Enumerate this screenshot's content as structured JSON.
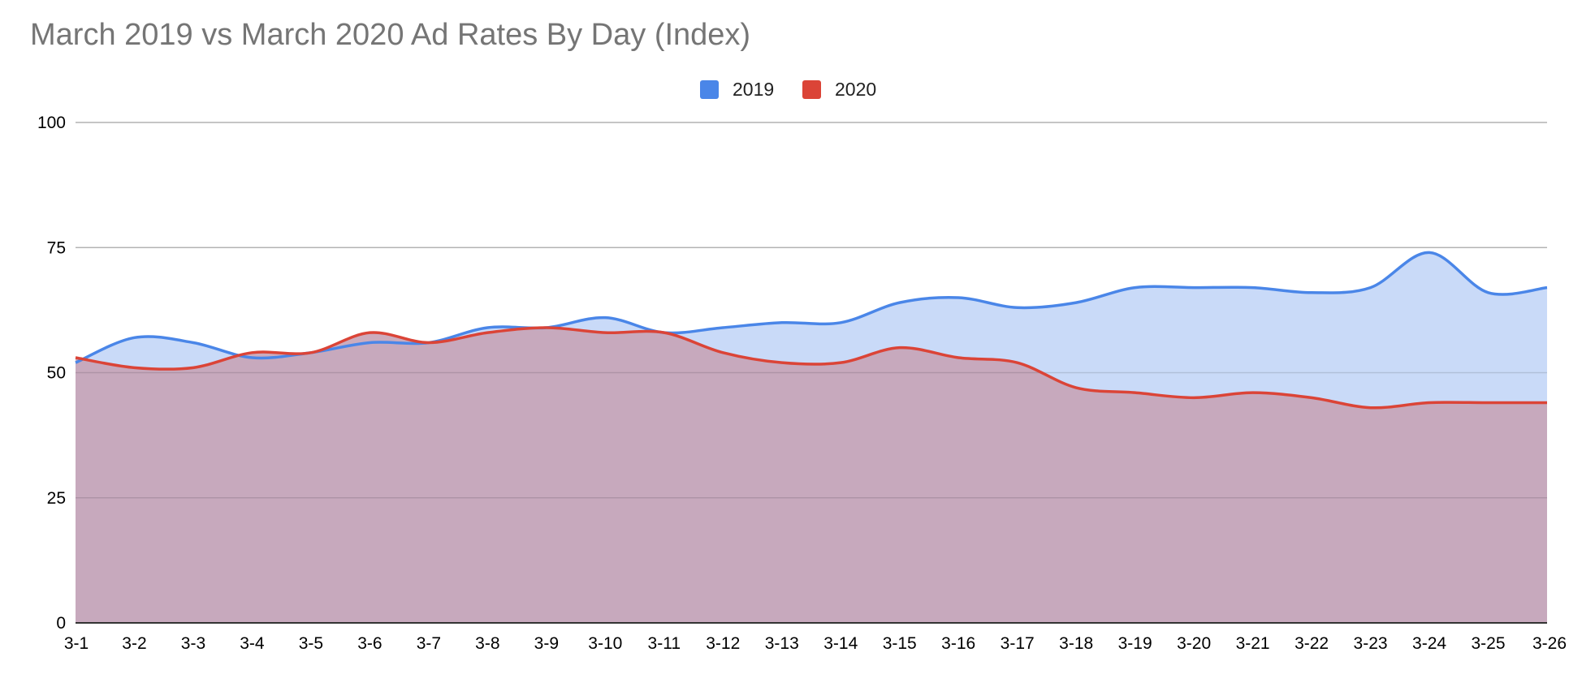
{
  "chart_data": {
    "type": "area",
    "title": "March 2019 vs March 2020 Ad Rates By Day (Index)",
    "xlabel": "",
    "ylabel": "",
    "categories": [
      "3-1",
      "3-2",
      "3-3",
      "3-4",
      "3-5",
      "3-6",
      "3-7",
      "3-8",
      "3-9",
      "3-10",
      "3-11",
      "3-12",
      "3-13",
      "3-14",
      "3-15",
      "3-16",
      "3-17",
      "3-18",
      "3-19",
      "3-20",
      "3-21",
      "3-22",
      "3-23",
      "3-24",
      "3-25",
      "3-26"
    ],
    "series": [
      {
        "name": "2019",
        "color": "#4a86e8",
        "fill": "#c9daf8",
        "values": [
          52,
          57,
          56,
          53,
          54,
          56,
          56,
          59,
          59,
          61,
          58,
          59,
          60,
          60,
          64,
          65,
          63,
          64,
          67,
          67,
          67,
          66,
          67,
          74,
          66,
          67
        ]
      },
      {
        "name": "2020",
        "color": "#db4437",
        "fill": "#c7a3b6",
        "values": [
          53,
          51,
          51,
          54,
          54,
          58,
          56,
          58,
          59,
          58,
          58,
          54,
          52,
          52,
          55,
          53,
          52,
          47,
          46,
          45,
          46,
          45,
          43,
          44,
          44,
          44
        ]
      }
    ],
    "ylim": [
      0,
      100
    ],
    "yticks": [
      0,
      25,
      50,
      75,
      100
    ],
    "grid": true,
    "legend_position": "top-center"
  }
}
